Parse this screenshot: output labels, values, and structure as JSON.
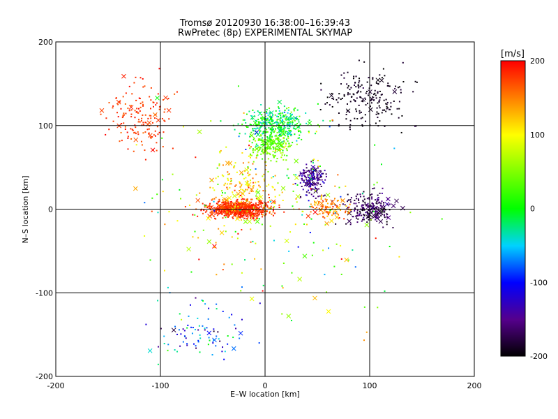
{
  "chart_data": {
    "type": "scatter",
    "title": "Tromsø 20120930 16:38:00–16:39:43",
    "subtitle": "RwPretec (8p) EXPERIMENTAL SKYMAP",
    "xlabel": "E–W location [km]",
    "ylabel": "N–S location [km]",
    "xlim": [
      -200,
      200
    ],
    "ylim": [
      -200,
      200
    ],
    "xticks": [
      -200,
      -100,
      0,
      100,
      200
    ],
    "yticks": [
      -200,
      -100,
      0,
      100,
      200
    ],
    "grid": true,
    "colorbar": {
      "label": "[m/s]",
      "range": [
        -200,
        200
      ],
      "ticks": [
        -200,
        -100,
        0,
        100,
        200
      ],
      "colormap": "rainbow (black-purple-blue-cyan-green-yellow-red)"
    },
    "clusters": [
      {
        "cx": -25,
        "cy": 0,
        "sx": 28,
        "sy": 10,
        "n": 700,
        "vmean": 180,
        "vsd": 25
      },
      {
        "cx": 10,
        "cy": 100,
        "sx": 30,
        "sy": 22,
        "n": 360,
        "vmean": -10,
        "vsd": 70
      },
      {
        "cx": 5,
        "cy": 75,
        "sx": 20,
        "sy": 18,
        "n": 180,
        "vmean": 40,
        "vsd": 40
      },
      {
        "cx": 45,
        "cy": 35,
        "sx": 12,
        "sy": 18,
        "n": 160,
        "vmean": -150,
        "vsd": 35
      },
      {
        "cx": 100,
        "cy": 0,
        "sx": 25,
        "sy": 20,
        "n": 220,
        "vmean": -170,
        "vsd": 30
      },
      {
        "cx": 100,
        "cy": 130,
        "sx": 40,
        "sy": 35,
        "n": 200,
        "vmean": -190,
        "vsd": 15
      },
      {
        "cx": 60,
        "cy": 0,
        "sx": 18,
        "sy": 12,
        "n": 110,
        "vmean": 150,
        "vsd": 40
      },
      {
        "cx": -120,
        "cy": 110,
        "sx": 30,
        "sy": 40,
        "n": 160,
        "vmean": 180,
        "vsd": 25
      },
      {
        "cx": -60,
        "cy": -150,
        "sx": 45,
        "sy": 35,
        "n": 90,
        "vmean": -80,
        "vsd": 100
      },
      {
        "cx": -20,
        "cy": 30,
        "sx": 30,
        "sy": 40,
        "n": 150,
        "vmean": 120,
        "vsd": 60
      },
      {
        "cx": 0,
        "cy": 0,
        "sx": 110,
        "sy": 110,
        "n": 250,
        "vmean": 60,
        "vsd": 150
      }
    ],
    "cross_fraction": 0.08,
    "seed": 20120930
  }
}
